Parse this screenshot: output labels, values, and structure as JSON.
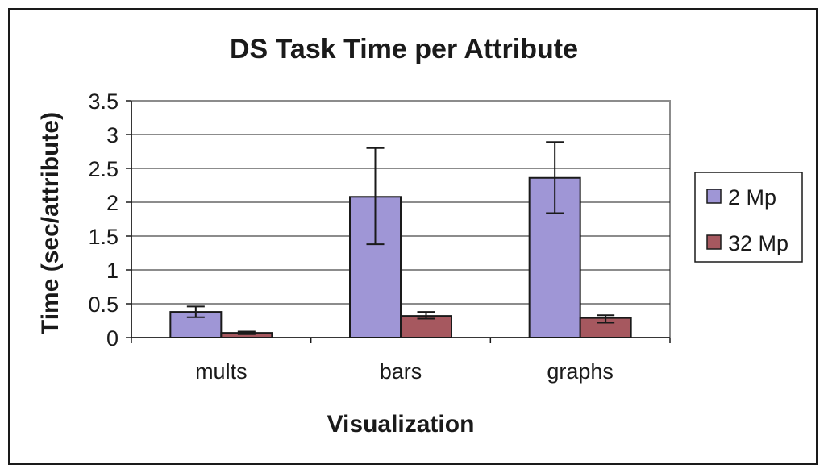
{
  "chart_data": {
    "type": "bar",
    "title": "DS Task Time per Attribute",
    "xlabel": "Visualization",
    "ylabel": "Time (sec/attribute)",
    "categories": [
      "mults",
      "bars",
      "graphs"
    ],
    "ylim": [
      0,
      3.5
    ],
    "yticks": [
      "0",
      "0.5",
      "1",
      "1.5",
      "2",
      "2.5",
      "3",
      "3.5"
    ],
    "grid": true,
    "legend_position": "right",
    "series": [
      {
        "name": "2 Mp",
        "color": "#9f96d6",
        "values": [
          0.38,
          2.08,
          2.36
        ],
        "error_low": [
          0.3,
          1.38,
          1.84
        ],
        "error_high": [
          0.46,
          2.8,
          2.89
        ]
      },
      {
        "name": "32 Mp",
        "color": "#a6585f",
        "values": [
          0.07,
          0.32,
          0.29
        ],
        "error_low": [
          0.05,
          0.28,
          0.22
        ],
        "error_high": [
          0.09,
          0.38,
          0.33
        ]
      }
    ]
  }
}
